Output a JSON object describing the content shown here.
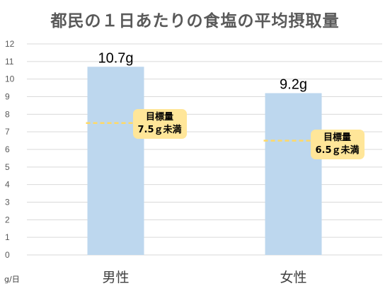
{
  "chart_data": {
    "type": "bar",
    "title": "都民の１日あたりの食塩の平均摂取量",
    "categories": [
      "男性",
      "女性"
    ],
    "values": [
      10.7,
      9.2
    ],
    "data_labels": [
      "10.7g",
      "9.2g"
    ],
    "bar_color": "#bdd7ee",
    "ylim": [
      0,
      12
    ],
    "yticks": [
      0,
      1,
      2,
      3,
      4,
      5,
      6,
      7,
      8,
      9,
      10,
      11,
      12
    ],
    "ylabel": "g/日",
    "grid": true,
    "targets": [
      {
        "category": "男性",
        "value": 7.5,
        "title": "目標量",
        "text": "7.5ｇ未満"
      },
      {
        "category": "女性",
        "value": 6.5,
        "title": "目標量",
        "text": "6.5ｇ未満"
      }
    ],
    "target_line_color": "#ffd966",
    "callout_color": "#ffe699"
  }
}
